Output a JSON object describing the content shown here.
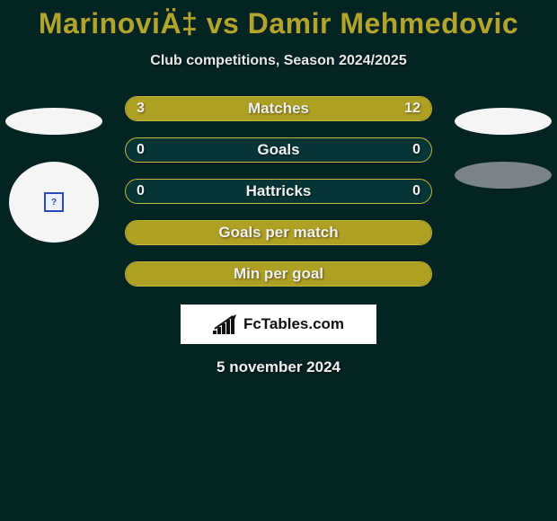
{
  "header": {
    "title": "MarinoviÄ‡ vs Damir Mehmedovic",
    "subtitle": "Club competitions, Season 2024/2025"
  },
  "avatars": {
    "left_ellipse_color": "#f5f5f5",
    "right_ellipse_color": "#7a8387",
    "badge_bg": "#f5f5f5",
    "badge_inner_border": "#2a4ab8",
    "badge_inner_glyph": "?"
  },
  "stats": {
    "bar_border_color": "#c4b63a",
    "bar_fill_color": "#aea023",
    "bar_bg_color": "#063535",
    "text_color": "#f0f0f0",
    "rows": [
      {
        "label": "Matches",
        "left_value": "3",
        "right_value": "12",
        "left_fill_pct": 18,
        "right_fill_pct": 82
      },
      {
        "label": "Goals",
        "left_value": "0",
        "right_value": "0",
        "left_fill_pct": 0,
        "right_fill_pct": 0
      },
      {
        "label": "Hattricks",
        "left_value": "0",
        "right_value": "0",
        "left_fill_pct": 0,
        "right_fill_pct": 0
      },
      {
        "label": "Goals per match",
        "left_value": "",
        "right_value": "",
        "full_fill": true
      },
      {
        "label": "Min per goal",
        "left_value": "",
        "right_value": "",
        "full_fill": true
      }
    ]
  },
  "branding": {
    "text": "FcTables.com",
    "bg_color": "#ffffff",
    "text_color": "#111111"
  },
  "footer": {
    "date": "5 november 2024"
  },
  "theme": {
    "page_bg": "#042323",
    "title_color": "#b3a42c"
  }
}
